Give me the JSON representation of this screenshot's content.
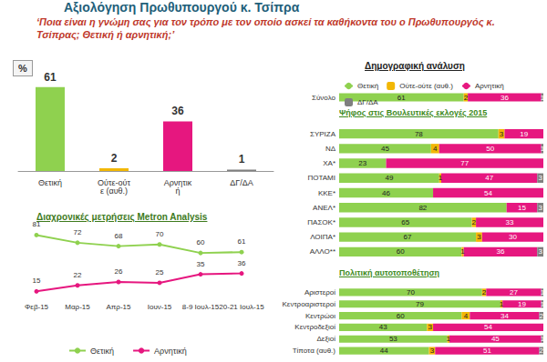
{
  "title": "Αξιολόγηση Πρωθυπουργού κ. Τσίπρα",
  "subtitle": "‘Ποια είναι η γνώμη σας για τον τρόπο με τον οποίο ασκεί τα καθήκοντα του ο Πρωθυπουργός κ. Τσίπρας; Θετική ή αρνητική;’",
  "chart_data": [
    {
      "type": "bar",
      "y_label": "%",
      "categories": [
        "Θετική",
        "Ούτε-ούτε (αυθ.)",
        "Αρνητική",
        "ΔΓ/ΔΑ"
      ],
      "values": [
        61,
        2,
        36,
        1
      ],
      "colors": [
        "#8fd14f",
        "#f2b705",
        "#e6177f",
        "#7f7f7f"
      ],
      "ylim": [
        0,
        70
      ],
      "data_labels": true,
      "tick_labels": "x",
      "grid": false
    },
    {
      "type": "line",
      "title": "Διαχρονικές μετρήσεις Metron Analysis",
      "categories": [
        "Φεβ-15",
        "Μαρ-15",
        "Απρ-15",
        "Ιουν-15",
        "8-9 Ιουλ-15",
        "20-21 Ιουλ-15"
      ],
      "series": [
        {
          "name": "Θετική",
          "color": "#8fd14f",
          "values": [
            81,
            72,
            68,
            70,
            60,
            61
          ]
        },
        {
          "name": "Αρνητική",
          "color": "#e6177f",
          "values": [
            15,
            22,
            26,
            25,
            35,
            36
          ]
        }
      ],
      "ylim": [
        10,
        90
      ],
      "data_labels": true,
      "tick_labels": "x",
      "legend": "bottom",
      "marker": "circle",
      "grid": false
    },
    {
      "type": "bar",
      "title": "Δημογραφική ανάλυση",
      "orientation": "horizontal",
      "stacked": true,
      "categories": [
        "Σύνολο"
      ],
      "series": [
        {
          "name": "Θετική",
          "color": "#8fd14f",
          "values": [
            61
          ]
        },
        {
          "name": "Ούτε-ούτε (αυθ.)",
          "color": "#f2b705",
          "values": [
            2
          ]
        },
        {
          "name": "Αρνητική",
          "color": "#e6177f",
          "values": [
            36
          ]
        },
        {
          "name": "ΔΓ/ΔΑ",
          "color": "#7f7f7f",
          "values": [
            1
          ]
        }
      ],
      "xlim": [
        0,
        100
      ],
      "data_labels": true,
      "tick_labels": "y",
      "legend": "top",
      "grid": false
    },
    {
      "type": "bar",
      "title": "Ψήφος στις Βουλευτικές εκλογές 2015",
      "orientation": "horizontal",
      "stacked": true,
      "categories": [
        "ΣΥΡΙΖΑ",
        "ΝΔ",
        "ΧΑ*",
        "ΠΟΤΑΜΙ",
        "ΚΚΕ*",
        "ΑΝΕΛ*",
        "ΠΑΣΟΚ*",
        "ΛΟΙΠΑ*",
        "ΑΛΛΟ**"
      ],
      "series": [
        {
          "name": "Θετική",
          "color": "#8fd14f",
          "values": [
            78,
            45,
            23,
            49,
            46,
            82,
            65,
            67,
            60
          ]
        },
        {
          "name": "Ούτε-ούτε (αυθ.)",
          "color": "#f2b705",
          "values": [
            3,
            4,
            null,
            1,
            null,
            null,
            2,
            3,
            1
          ]
        },
        {
          "name": "Αρνητική",
          "color": "#e6177f",
          "values": [
            19,
            50,
            77,
            47,
            54,
            15,
            33,
            30,
            36
          ]
        },
        {
          "name": "ΔΓ/ΔΑ",
          "color": "#7f7f7f",
          "values": [
            null,
            1,
            null,
            3,
            null,
            3,
            null,
            null,
            3
          ]
        }
      ],
      "xlim": [
        0,
        100
      ],
      "data_labels": true,
      "tick_labels": "y",
      "grid": false
    },
    {
      "type": "bar",
      "title": "Πολιτική αυτοτοποθέτηση",
      "orientation": "horizontal",
      "stacked": true,
      "categories": [
        "Αριστεροί",
        "Κεντροαριστεροί",
        "Κεντρώοι",
        "Κεντροδεξιοί",
        "Δεξιοί",
        "Τίποτα (αυθ.)"
      ],
      "series": [
        {
          "name": "Θετική",
          "color": "#8fd14f",
          "values": [
            70,
            79,
            60,
            43,
            53,
            44
          ]
        },
        {
          "name": "Ούτε-ούτε (αυθ.)",
          "color": "#f2b705",
          "values": [
            2,
            1,
            4,
            3,
            1,
            3
          ]
        },
        {
          "name": "Αρνητική",
          "color": "#e6177f",
          "values": [
            27,
            19,
            34,
            54,
            45,
            51
          ]
        },
        {
          "name": "ΔΓ/ΔΑ",
          "color": "#7f7f7f",
          "values": [
            1,
            1,
            2,
            null,
            1,
            2
          ]
        }
      ],
      "xlim": [
        0,
        100
      ],
      "data_labels": true,
      "tick_labels": "y",
      "grid": false
    }
  ]
}
